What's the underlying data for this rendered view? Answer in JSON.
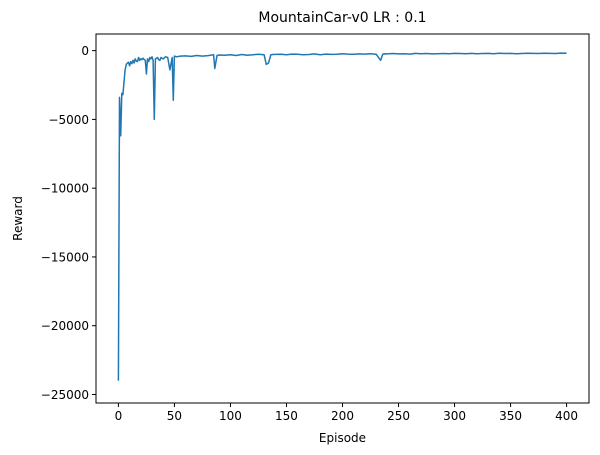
{
  "chart_data": {
    "type": "line",
    "title": "MountainCar-v0 LR : 0.1",
    "xlabel": "Episode",
    "ylabel": "Reward",
    "xlim": [
      -20,
      420
    ],
    "ylim": [
      -25620,
      1210
    ],
    "xticks": [
      0,
      50,
      100,
      150,
      200,
      250,
      300,
      350,
      400
    ],
    "yticks": [
      0,
      -5000,
      -10000,
      -15000,
      -20000,
      -25000
    ],
    "ytick_labels": [
      "0",
      "−5000",
      "−10000",
      "−15000",
      "−20000",
      "−25000"
    ],
    "grid": false,
    "line_color": "#1f77b4",
    "series": [
      {
        "x": [
          0,
          1,
          2,
          3,
          4,
          5,
          6,
          7,
          8,
          9,
          10,
          11,
          12,
          13,
          14,
          15,
          16,
          17,
          18,
          19,
          20,
          21,
          22,
          23,
          24,
          25,
          26,
          27,
          28,
          29,
          30,
          31,
          32,
          33,
          34,
          35,
          36,
          37,
          38,
          39,
          40,
          42,
          44,
          46,
          48,
          49,
          50,
          52,
          55,
          60,
          65,
          70,
          75,
          80,
          85,
          86,
          88,
          90,
          95,
          100,
          105,
          110,
          115,
          120,
          125,
          130,
          132,
          134,
          136,
          138,
          140,
          145,
          150,
          155,
          160,
          165,
          170,
          175,
          180,
          185,
          190,
          195,
          200,
          205,
          210,
          215,
          220,
          225,
          230,
          234,
          236,
          238,
          240,
          245,
          250,
          255,
          260,
          265,
          270,
          275,
          280,
          285,
          290,
          295,
          300,
          305,
          310,
          315,
          320,
          325,
          330,
          335,
          340,
          345,
          350,
          355,
          360,
          365,
          370,
          375,
          380,
          385,
          390,
          395,
          400
        ],
        "y": [
          -24000,
          -3400,
          -6200,
          -3100,
          -3200,
          -2300,
          -1400,
          -1000,
          -900,
          -850,
          -1100,
          -800,
          -950,
          -700,
          -900,
          -600,
          -750,
          -800,
          -500,
          -700,
          -600,
          -650,
          -550,
          -650,
          -700,
          -1700,
          -600,
          -800,
          -500,
          -600,
          -450,
          -700,
          -5000,
          -600,
          -550,
          -500,
          -650,
          -700,
          -500,
          -550,
          -600,
          -450,
          -500,
          -1400,
          -500,
          -3600,
          -400,
          -450,
          -400,
          -380,
          -420,
          -350,
          -400,
          -360,
          -300,
          -1300,
          -350,
          -320,
          -330,
          -300,
          -350,
          -280,
          -330,
          -300,
          -260,
          -300,
          -1000,
          -900,
          -300,
          -280,
          -270,
          -260,
          -300,
          -250,
          -260,
          -300,
          -280,
          -240,
          -300,
          -250,
          -270,
          -260,
          -230,
          -250,
          -260,
          -240,
          -250,
          -230,
          -260,
          -700,
          -250,
          -220,
          -240,
          -210,
          -240,
          -220,
          -250,
          -200,
          -230,
          -210,
          -240,
          -220,
          -210,
          -230,
          -200,
          -210,
          -220,
          -200,
          -230,
          -210,
          -200,
          -220,
          -190,
          -210,
          -200,
          -220,
          -210,
          -190,
          -200,
          -210,
          -190,
          -200,
          -210,
          -180,
          -190
        ]
      }
    ]
  }
}
